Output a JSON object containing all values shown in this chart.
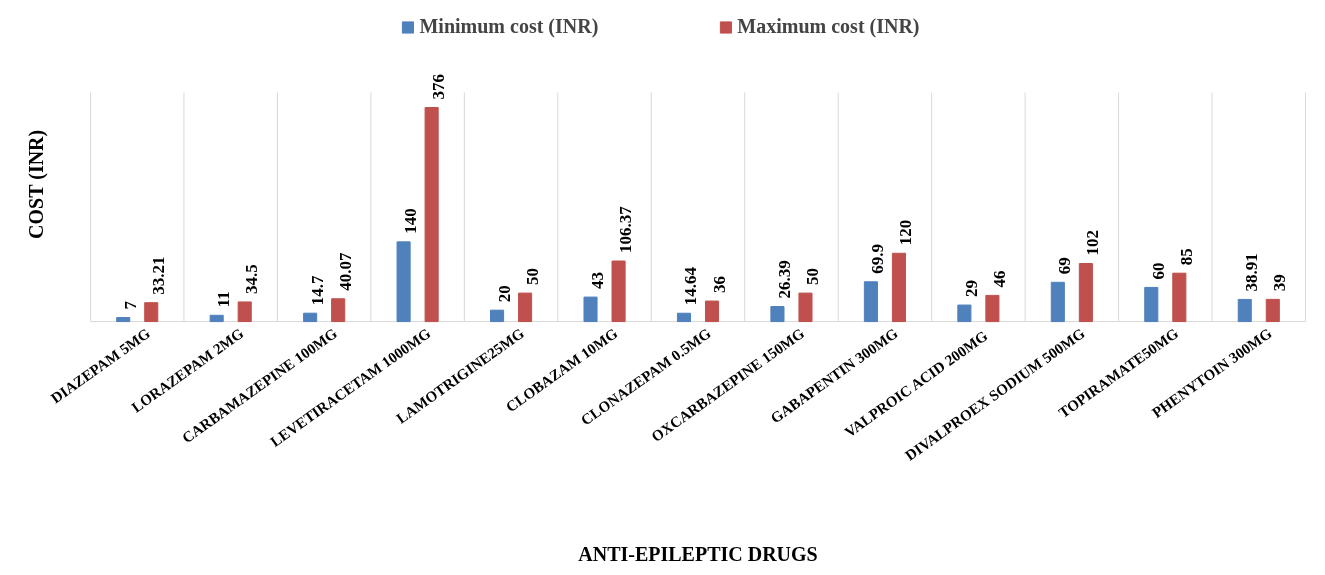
{
  "chart_data": {
    "type": "bar",
    "xlabel": "ANTI-EPILEPTIC DRUGS",
    "ylabel": "COST (INR)",
    "categories": [
      "DIAZEPAM 5MG",
      "LORAZEPAM 2MG",
      "CARBAMAZEPINE 100MG",
      "LEVETIRACETAM 1000MG",
      "LAMOTRIGINE25MG",
      "CLOBAZAM 10MG",
      "CLONAZEPAM 0.5MG",
      "OXCARBAZEPINE 150MG",
      "GABAPENTIN 300MG",
      "VALPROIC ACID  200MG",
      "DIVALPROEX SODIUM 500MG",
      "TOPIRAMATE50MG",
      "PHENYTOIN 300MG"
    ],
    "series": [
      {
        "name": "Minimum cost (INR)",
        "color": "#4f81bd",
        "values": [
          7,
          11,
          14.7,
          140,
          20,
          43,
          14.64,
          26.39,
          69.9,
          29,
          69,
          60,
          38.91
        ]
      },
      {
        "name": "Maximum cost (INR)",
        "color": "#c0504d",
        "values": [
          33.21,
          34.5,
          40.07,
          376,
          50,
          106.37,
          36,
          50,
          120,
          46,
          102,
          85,
          39
        ]
      }
    ],
    "data_labels": true,
    "grid": "x",
    "legend": "top",
    "tick_labels": "x"
  }
}
